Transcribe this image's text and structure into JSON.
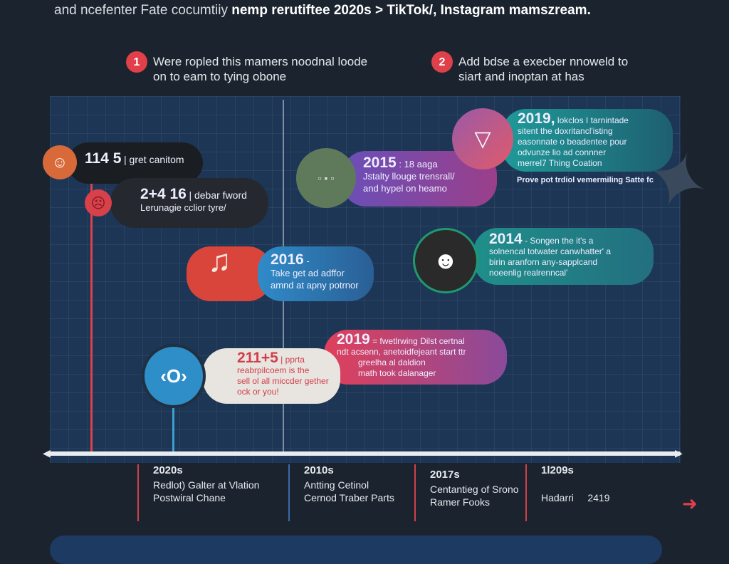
{
  "header": {
    "text_plain": "and ncefenter Fate cocumtiiy ",
    "text_bold": "nemp rerutiftee 2020s > TikTok/, Instagram mamszream."
  },
  "steps": [
    {
      "number": "1",
      "line1": "Were ropled this mamers noodnal loode",
      "line2": "on to eam to tying obone"
    },
    {
      "number": "2",
      "line1": "Add bdse a execber nnoweld to",
      "line2": "siart and inoptan at has"
    }
  ],
  "cards": {
    "c1": {
      "year": "114 5",
      "text": "| gret canitom"
    },
    "c2": {
      "year": "2+4 16",
      "text": "| debar fword",
      "line2": "Lerunagie cclior tyre/"
    },
    "c2016": {
      "year": "2016",
      "sep": "-",
      "line1": "Take get ad adffor",
      "line2": "amnd at apny potrnor"
    },
    "c2015": {
      "year": "2015",
      "sep": ": 18 aaga",
      "line1": "Jstalty llouge trensrall/",
      "line2": "and hypel on heamo"
    },
    "c2019a": {
      "year": "2019,",
      "sep": "lokclos I tarnintade",
      "line1": "sitent the doxritancl'isting",
      "line2": "easonnate o beadentee pour",
      "line3": "odvunze lio ad connner",
      "line4": "merrel7 Thing Coation",
      "note": "Prove pot trdiol vemermiling Satte fc"
    },
    "c2014": {
      "year": "2014",
      "sep": "- Songen the it's a",
      "line1": "solnencal totwater canwhatter' a",
      "line2": "birin aranforn any-sapplcand",
      "line3": "noeenlig realrenncal'"
    },
    "c2019b": {
      "year": "2019",
      "sep": "= fwetlrwing Dilst certnal",
      "line1": "ndt acsenn, anetoidfejeant start ttr",
      "line2": "greelha al daldion",
      "line3": "math took dalanager"
    },
    "c2115": {
      "year": "211+5",
      "sep": "| pprta",
      "line1": "reabrpilcoem is the",
      "line2": "sell ol all miccder gether",
      "line3": "ock or you!"
    }
  },
  "eras": [
    {
      "year": "2020s",
      "text": "Redlot) Galter at Vlation Postwiral Chane",
      "color": "#d0404a"
    },
    {
      "year": "2010s",
      "text": "Antting Cetinol Cernod Traber Parts",
      "color": "#3a6aa8"
    },
    {
      "year": "2017s",
      "text": "Centantieg of Srono Ramer Fooks",
      "color": "#d0404a"
    },
    {
      "year": "1l209s",
      "text": "Hadarri",
      "value": "2419",
      "color": "#d0404a"
    }
  ],
  "icons": [
    "monster-icon",
    "sad-face-icon",
    "music-note-icon",
    "photo-collage-icon",
    "mouth-icon",
    "character-icon",
    "globe-icon",
    "paper-plane-icon",
    "arrow-right-icon"
  ],
  "colors": {
    "background": "#1b242e",
    "panel": "#1d3656",
    "accent_red": "#e0404a",
    "teal": "#1f8a8a",
    "purple": "#7a4fb0"
  }
}
